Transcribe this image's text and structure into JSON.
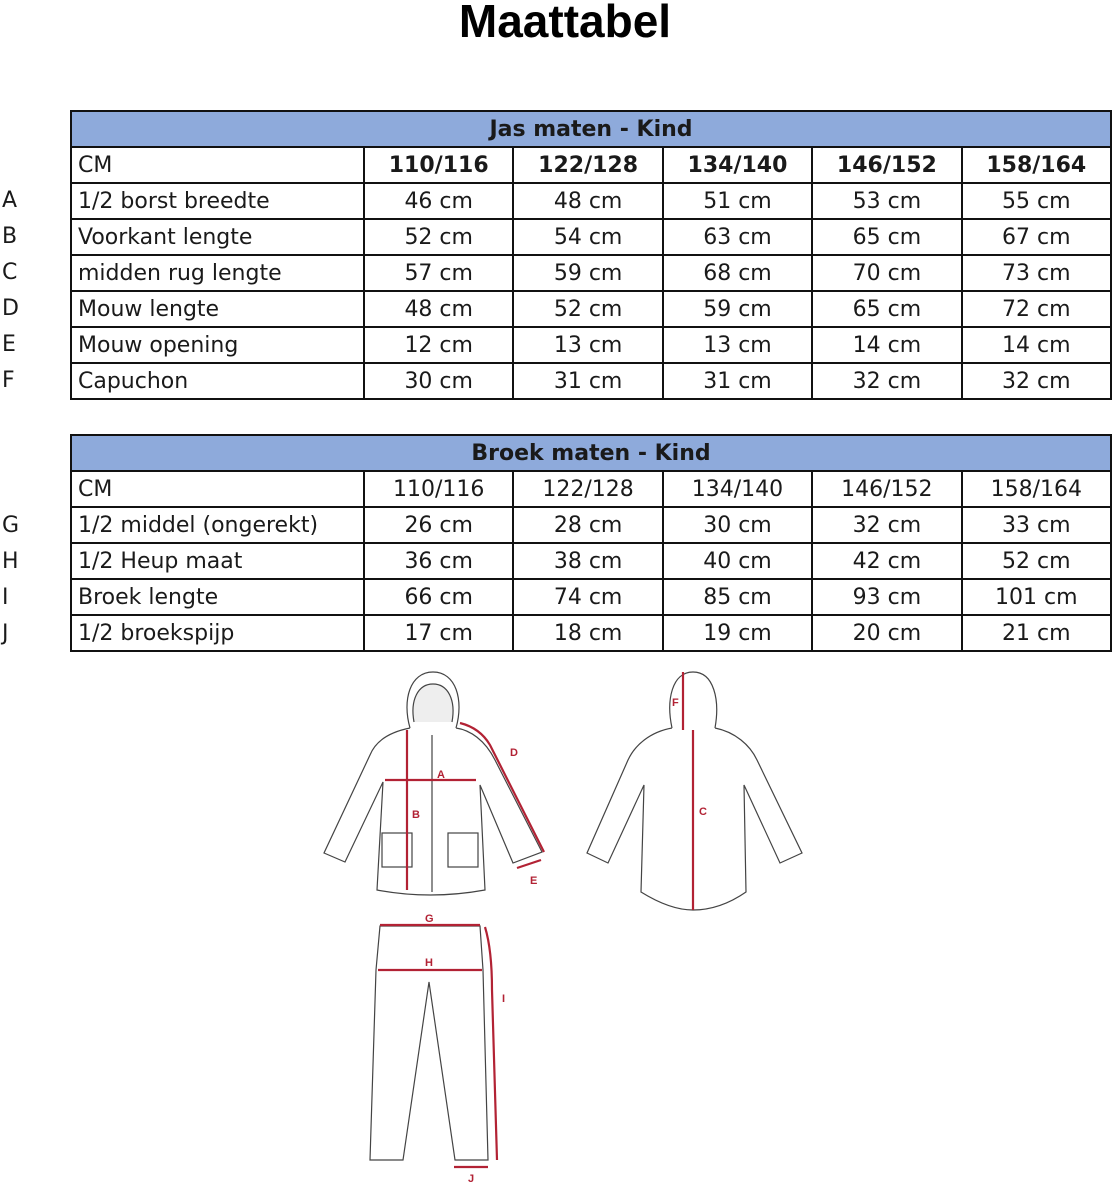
{
  "title": "Maattabel",
  "jacket": {
    "heading": "Jas maten - Kind",
    "unit_label": "CM",
    "sizes": [
      "110/116",
      "122/128",
      "134/140",
      "146/152",
      "158/164"
    ],
    "rows": [
      {
        "letter": "A",
        "label": "1/2 borst breedte",
        "values": [
          "46 cm",
          "48 cm",
          "51 cm",
          "53 cm",
          "55 cm"
        ]
      },
      {
        "letter": "B",
        "label": "Voorkant lengte",
        "values": [
          "52 cm",
          "54 cm",
          "63 cm",
          "65 cm",
          "67 cm"
        ]
      },
      {
        "letter": "C",
        "label": "midden rug lengte",
        "values": [
          "57 cm",
          "59 cm",
          "68 cm",
          "70 cm",
          "73 cm"
        ]
      },
      {
        "letter": "D",
        "label": "Mouw lengte",
        "values": [
          "48 cm",
          "52 cm",
          "59 cm",
          "65 cm",
          "72 cm"
        ]
      },
      {
        "letter": "E",
        "label": "Mouw opening",
        "values": [
          "12 cm",
          "13 cm",
          "13 cm",
          "14 cm",
          "14 cm"
        ]
      },
      {
        "letter": "F",
        "label": "Capuchon",
        "values": [
          "30 cm",
          "31 cm",
          "31 cm",
          "32 cm",
          "32 cm"
        ]
      }
    ]
  },
  "pants": {
    "heading": "Broek maten - Kind",
    "unit_label": "CM",
    "sizes": [
      "110/116",
      "122/128",
      "134/140",
      "146/152",
      "158/164"
    ],
    "rows": [
      {
        "letter": "G",
        "label": "1/2 middel (ongerekt)",
        "values": [
          "26 cm",
          "28 cm",
          "30 cm",
          "32 cm",
          "33 cm"
        ]
      },
      {
        "letter": "H",
        "label": "1/2 Heup maat",
        "values": [
          "36 cm",
          "38 cm",
          "40 cm",
          "42 cm",
          "52 cm"
        ]
      },
      {
        "letter": "I",
        "label": "Broek lengte",
        "values": [
          "66 cm",
          "74 cm",
          "85 cm",
          "93 cm",
          "101 cm"
        ]
      },
      {
        "letter": "J",
        "label": "1/2 broekspijp",
        "values": [
          "17 cm",
          "18 cm",
          "19 cm",
          "20 cm",
          "21 cm"
        ]
      }
    ]
  },
  "illustration_labels": [
    "A",
    "B",
    "C",
    "D",
    "E",
    "F",
    "G",
    "H",
    "I",
    "J"
  ],
  "colors": {
    "header_bg": "#8eaadb",
    "measure_line": "#b22234"
  }
}
